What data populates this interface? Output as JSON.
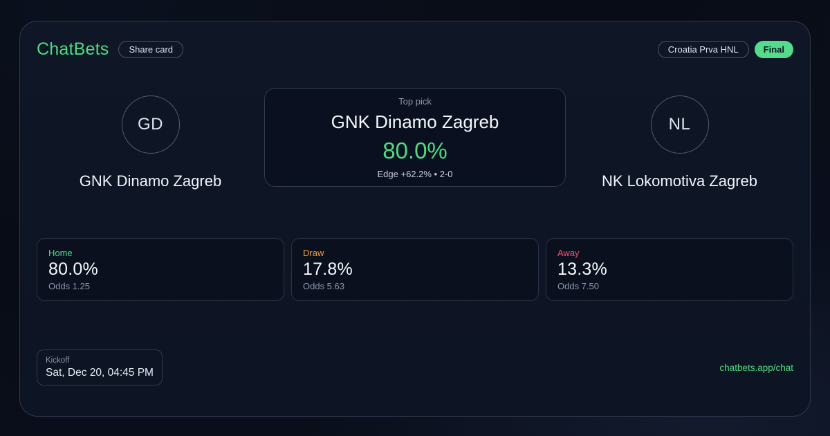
{
  "brand": {
    "name": "ChatBets",
    "share_label": "Share card",
    "url": "chatbets.app/chat"
  },
  "header": {
    "league": "Croatia Prva HNL",
    "status": "Final"
  },
  "match": {
    "home": {
      "initials": "GD",
      "name": "GNK Dinamo Zagreb"
    },
    "away": {
      "initials": "NL",
      "name": "NK Lokomotiva Zagreb"
    },
    "top_pick": {
      "label": "Top pick",
      "team": "GNK Dinamo Zagreb",
      "probability": "80.0%",
      "meta": "Edge +62.2% • 2-0"
    }
  },
  "outcomes": [
    {
      "label": "Home",
      "probability": "80.0%",
      "odds": "Odds 1.25",
      "color": "#4ade80"
    },
    {
      "label": "Draw",
      "probability": "17.8%",
      "odds": "Odds 5.63",
      "color": "#f0a33c"
    },
    {
      "label": "Away",
      "probability": "13.3%",
      "odds": "Odds 7.50",
      "color": "#f05672"
    }
  ],
  "kickoff": {
    "label": "Kickoff",
    "value": "Sat, Dec 20, 04:45 PM"
  },
  "colors": {
    "accent_green": "#4ade80",
    "status_badge_bg": "#53dd8b",
    "status_badge_text": "#0b1322"
  }
}
